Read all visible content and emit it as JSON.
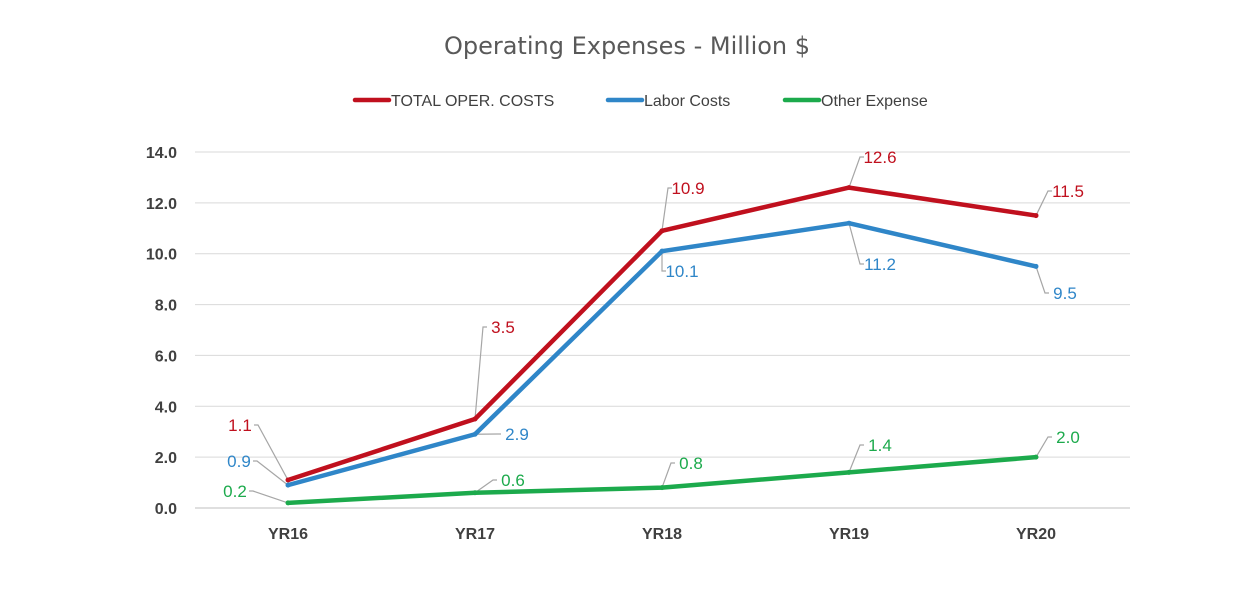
{
  "chart_data": {
    "type": "line",
    "title": "Operating Expenses - Million $",
    "xlabel": "",
    "ylabel": "",
    "categories": [
      "YR16",
      "YR17",
      "YR18",
      "YR19",
      "YR20"
    ],
    "ylim": [
      0,
      14
    ],
    "yticks": [
      "0.0",
      "2.0",
      "4.0",
      "6.0",
      "8.0",
      "10.0",
      "12.0",
      "14.0"
    ],
    "grid": true,
    "legend_position": "top",
    "series": [
      {
        "name": "TOTAL OPER. COSTS",
        "color": "#C0101E",
        "values": [
          1.1,
          3.5,
          10.9,
          12.6,
          11.5
        ],
        "labels": [
          "1.1",
          "3.5",
          "10.9",
          "12.6",
          "11.5"
        ]
      },
      {
        "name": "Labor Costs",
        "color": "#2F86C8",
        "values": [
          0.9,
          2.9,
          10.1,
          11.2,
          9.5
        ],
        "labels": [
          "0.9",
          "2.9",
          "10.1",
          "11.2",
          "9.5"
        ]
      },
      {
        "name": "Other Expense",
        "color": "#1CAA4C",
        "values": [
          0.2,
          0.6,
          0.8,
          1.4,
          2.0
        ],
        "labels": [
          "0.2",
          "0.6",
          "0.8",
          "1.4",
          "2.0"
        ]
      }
    ]
  }
}
